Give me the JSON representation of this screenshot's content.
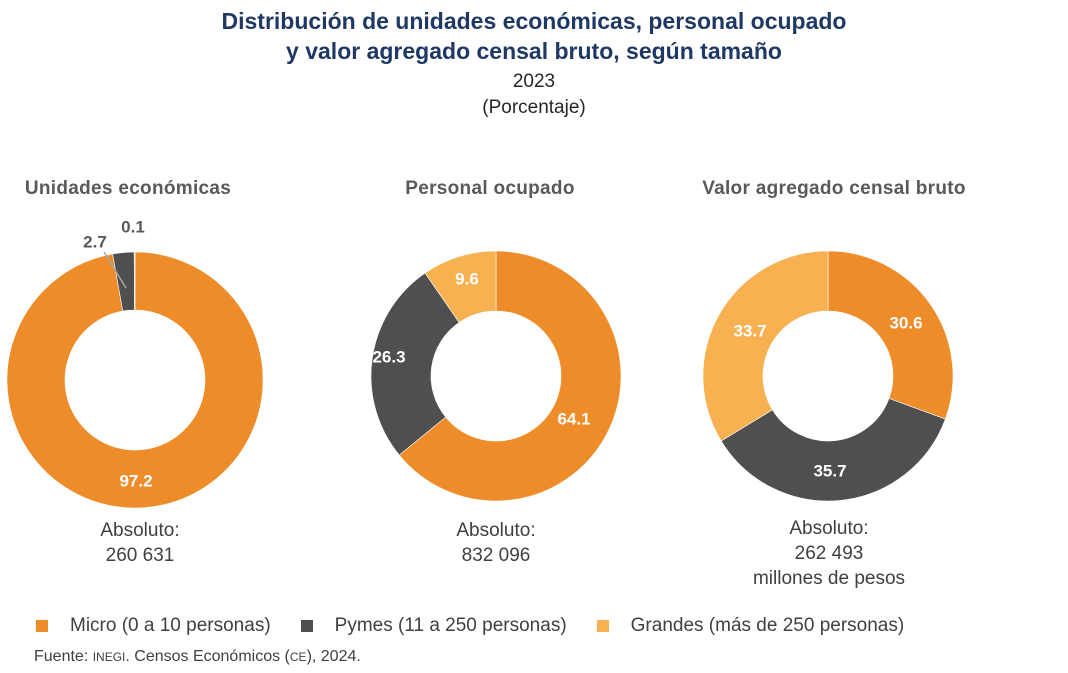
{
  "title_line1": "Distribución de unidades económicas, personal ocupado",
  "title_line2": "y valor agregado censal bruto, según tamaño",
  "year": "2023",
  "unit": "(Porcentaje)",
  "charts": [
    {
      "heading": "Unidades económicas",
      "absolute_label": "Absoluto:",
      "absolute_value": "260 631",
      "absolute_unit": ""
    },
    {
      "heading": "Personal ocupado",
      "absolute_label": "Absoluto:",
      "absolute_value": "832 096",
      "absolute_unit": ""
    },
    {
      "heading": "Valor agregado censal bruto",
      "absolute_label": "Absoluto:",
      "absolute_value": "262 493",
      "absolute_unit": "millones de pesos"
    }
  ],
  "legend": [
    {
      "label": "Micro (0 a 10 personas)",
      "color": "#ed8c28"
    },
    {
      "label": "Pymes (11 a 250 personas)",
      "color": "#4f4f4f"
    },
    {
      "label": "Grandes (más de 250 personas)",
      "color": "#f7b150"
    }
  ],
  "source": {
    "prefix": "Fuente: ",
    "org": "INEGI",
    "middle": ". Censos Económicos (",
    "abbr": "CE",
    "suffix": "), 2024."
  },
  "chart_data": [
    {
      "type": "pie",
      "title": "Unidades económicas",
      "categories": [
        "Micro (0 a 10 personas)",
        "Pymes (11 a 250 personas)",
        "Grandes (más de 250 personas)"
      ],
      "values": [
        97.2,
        2.7,
        0.1
      ],
      "labels": [
        "97.2",
        "2.7",
        "0.1"
      ]
    },
    {
      "type": "pie",
      "title": "Personal ocupado",
      "categories": [
        "Micro (0 a 10 personas)",
        "Pymes (11 a 250 personas)",
        "Grandes (más de 250 personas)"
      ],
      "values": [
        64.1,
        26.3,
        9.6
      ],
      "labels": [
        "64.1",
        "26.3",
        "9.6"
      ]
    },
    {
      "type": "pie",
      "title": "Valor agregado censal bruto",
      "categories": [
        "Micro (0 a 10 personas)",
        "Pymes (11 a 250 personas)",
        "Grandes (más de 250 personas)"
      ],
      "values": [
        30.6,
        35.7,
        33.7
      ],
      "labels": [
        "30.6",
        "35.7",
        "33.7"
      ]
    }
  ]
}
